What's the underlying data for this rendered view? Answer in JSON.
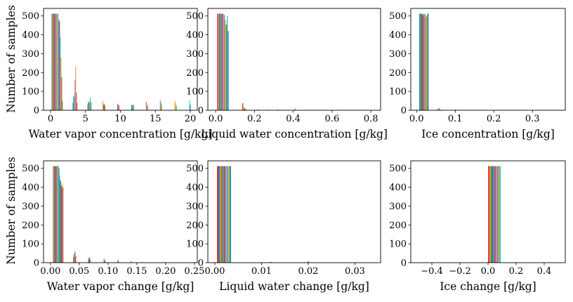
{
  "figure": {
    "ylabel_left": "Number of samples"
  },
  "colors": [
    "#1f77b4",
    "#ff7f0e",
    "#2ca02c",
    "#d62728",
    "#9467bd",
    "#8c564b",
    "#e377c2",
    "#7f7f7f",
    "#bcbd22",
    "#17becf"
  ],
  "chart_data": [
    {
      "type": "bar",
      "title": "",
      "xlabel": "Water vapor concentration [g/kg]",
      "ylabel": "Number of samples",
      "xlim": [
        -1.0,
        21.0
      ],
      "ylim": [
        0,
        540
      ],
      "xticks": [
        0,
        5,
        10,
        15,
        20
      ],
      "xtick_labels": [
        "0",
        "5",
        "10",
        "15",
        "20"
      ],
      "yticks": [
        0,
        100,
        200,
        300,
        400,
        500
      ],
      "ytick_labels": [
        "0",
        "100",
        "200",
        "300",
        "400",
        "500"
      ],
      "bar_width": 0.09,
      "bars": [
        [
          0.2,
          512,
          0
        ],
        [
          0.3,
          512,
          1
        ],
        [
          0.4,
          512,
          2
        ],
        [
          0.5,
          512,
          3
        ],
        [
          0.6,
          512,
          4
        ],
        [
          0.7,
          512,
          5
        ],
        [
          0.8,
          512,
          6
        ],
        [
          0.9,
          512,
          7
        ],
        [
          1.0,
          512,
          8
        ],
        [
          1.1,
          512,
          9
        ],
        [
          1.2,
          480,
          0
        ],
        [
          1.3,
          470,
          3
        ],
        [
          1.4,
          390,
          9
        ],
        [
          1.5,
          280,
          1
        ],
        [
          1.6,
          175,
          3
        ],
        [
          1.7,
          50,
          2
        ],
        [
          3.2,
          40,
          2
        ],
        [
          3.3,
          70,
          0
        ],
        [
          3.4,
          80,
          9
        ],
        [
          3.5,
          160,
          4
        ],
        [
          3.6,
          232,
          1
        ],
        [
          3.7,
          95,
          3
        ],
        [
          3.8,
          40,
          5
        ],
        [
          5.3,
          30,
          1
        ],
        [
          5.4,
          45,
          2
        ],
        [
          5.5,
          40,
          0
        ],
        [
          5.6,
          50,
          9
        ],
        [
          5.7,
          70,
          9
        ],
        [
          5.8,
          40,
          3
        ],
        [
          7.5,
          50,
          1
        ],
        [
          7.6,
          30,
          3
        ],
        [
          7.7,
          35,
          2
        ],
        [
          7.8,
          25,
          5
        ],
        [
          9.6,
          35,
          0
        ],
        [
          9.7,
          30,
          1
        ],
        [
          9.8,
          25,
          3
        ],
        [
          11.6,
          30,
          0
        ],
        [
          11.7,
          25,
          2
        ],
        [
          11.8,
          30,
          9
        ],
        [
          11.9,
          28,
          4
        ],
        [
          13.7,
          45,
          3
        ],
        [
          13.8,
          30,
          1
        ],
        [
          13.9,
          25,
          9
        ],
        [
          15.7,
          55,
          4
        ],
        [
          15.8,
          40,
          2
        ],
        [
          15.9,
          28,
          1
        ],
        [
          17.8,
          50,
          1
        ],
        [
          17.9,
          35,
          8
        ],
        [
          18.0,
          25,
          2
        ],
        [
          19.9,
          55,
          9
        ],
        [
          20.0,
          30,
          0
        ]
      ]
    },
    {
      "type": "bar",
      "title": "",
      "xlabel": "Liquid water concentration [g/kg]",
      "ylabel": "",
      "xlim": [
        -0.04,
        0.85
      ],
      "ylim": [
        0,
        540
      ],
      "xticks": [
        0.0,
        0.2,
        0.4,
        0.6,
        0.8
      ],
      "xtick_labels": [
        "0.0",
        "0.2",
        "0.4",
        "0.6",
        "0.8"
      ],
      "yticks": [
        0,
        100,
        200,
        300,
        400,
        500
      ],
      "ytick_labels": [
        "0",
        "100",
        "200",
        "300",
        "400",
        "500"
      ],
      "bar_width": 0.0045,
      "bars": [
        [
          0.01,
          512,
          3
        ],
        [
          0.015,
          512,
          1
        ],
        [
          0.02,
          512,
          0
        ],
        [
          0.025,
          512,
          2
        ],
        [
          0.03,
          512,
          4
        ],
        [
          0.035,
          512,
          5
        ],
        [
          0.04,
          512,
          6
        ],
        [
          0.045,
          505,
          7
        ],
        [
          0.05,
          480,
          8
        ],
        [
          0.055,
          455,
          5
        ],
        [
          0.06,
          500,
          9
        ],
        [
          0.065,
          420,
          0
        ],
        [
          0.14,
          38,
          3
        ],
        [
          0.145,
          15,
          1
        ],
        [
          0.15,
          10,
          2
        ],
        [
          0.155,
          8,
          9
        ],
        [
          0.22,
          5,
          0
        ],
        [
          0.27,
          3,
          3
        ],
        [
          0.32,
          6,
          9
        ],
        [
          0.41,
          8,
          0
        ],
        [
          0.64,
          3,
          2
        ]
      ]
    },
    {
      "type": "bar",
      "title": "",
      "xlabel": "Ice concentration [g/kg]",
      "ylabel": "",
      "xlim": [
        -0.015,
        0.385
      ],
      "ylim": [
        0,
        540
      ],
      "xticks": [
        0.0,
        0.1,
        0.2,
        0.3
      ],
      "xtick_labels": [
        "0.0",
        "0.1",
        "0.2",
        "0.3"
      ],
      "yticks": [
        0,
        100,
        200,
        300,
        400,
        500
      ],
      "ytick_labels": [
        "0",
        "100",
        "200",
        "300",
        "400",
        "500"
      ],
      "bar_width": 0.0022,
      "bars": [
        [
          0.008,
          512,
          0
        ],
        [
          0.01,
          512,
          9
        ],
        [
          0.012,
          512,
          2
        ],
        [
          0.014,
          510,
          3
        ],
        [
          0.016,
          512,
          4
        ],
        [
          0.018,
          505,
          5
        ],
        [
          0.02,
          512,
          6
        ],
        [
          0.022,
          508,
          7
        ],
        [
          0.024,
          495,
          8
        ],
        [
          0.026,
          500,
          1
        ],
        [
          0.028,
          512,
          9
        ],
        [
          0.03,
          512,
          0
        ],
        [
          0.055,
          8,
          1
        ],
        [
          0.058,
          12,
          3
        ],
        [
          0.061,
          5,
          2
        ],
        [
          0.1,
          4,
          0
        ],
        [
          0.103,
          2,
          9
        ]
      ]
    },
    {
      "type": "bar",
      "title": "",
      "xlabel": "Water vapor change [g/kg]",
      "ylabel": "Number of samples",
      "xlim": [
        -0.012,
        0.255
      ],
      "ylim": [
        0,
        540
      ],
      "xticks": [
        0.0,
        0.05,
        0.1,
        0.15,
        0.2,
        0.25
      ],
      "xtick_labels": [
        "0.00",
        "0.05",
        "0.10",
        "0.15",
        "0.20",
        "0.25"
      ],
      "yticks": [
        0,
        100,
        200,
        300,
        400,
        500
      ],
      "ytick_labels": [
        "0",
        "100",
        "200",
        "300",
        "400",
        "500"
      ],
      "bar_width": 0.0011,
      "bars": [
        [
          0.005,
          512,
          0
        ],
        [
          0.006,
          512,
          1
        ],
        [
          0.007,
          512,
          2
        ],
        [
          0.008,
          512,
          3
        ],
        [
          0.009,
          512,
          4
        ],
        [
          0.01,
          512,
          5
        ],
        [
          0.011,
          512,
          6
        ],
        [
          0.012,
          512,
          7
        ],
        [
          0.013,
          512,
          8
        ],
        [
          0.014,
          512,
          9
        ],
        [
          0.015,
          500,
          0
        ],
        [
          0.016,
          460,
          9
        ],
        [
          0.017,
          440,
          2
        ],
        [
          0.018,
          430,
          0
        ],
        [
          0.019,
          410,
          3
        ],
        [
          0.02,
          395,
          3
        ],
        [
          0.021,
          420,
          1
        ],
        [
          0.022,
          400,
          4
        ],
        [
          0.04,
          30,
          0
        ],
        [
          0.041,
          45,
          2
        ],
        [
          0.042,
          55,
          1
        ],
        [
          0.043,
          60,
          4
        ],
        [
          0.044,
          35,
          3
        ],
        [
          0.066,
          20,
          0
        ],
        [
          0.067,
          25,
          2
        ],
        [
          0.068,
          30,
          5
        ],
        [
          0.069,
          15,
          3
        ],
        [
          0.093,
          20,
          3
        ],
        [
          0.094,
          15,
          1
        ],
        [
          0.095,
          10,
          0
        ],
        [
          0.117,
          15,
          0
        ],
        [
          0.118,
          8,
          2
        ],
        [
          0.14,
          8,
          9
        ],
        [
          0.141,
          5,
          3
        ],
        [
          0.16,
          4,
          0
        ],
        [
          0.2,
          3,
          2
        ],
        [
          0.24,
          2,
          1
        ]
      ]
    },
    {
      "type": "bar",
      "title": "",
      "xlabel": "Liquid water change [g/kg]",
      "ylabel": "",
      "xlim": [
        -0.0015,
        0.0355
      ],
      "ylim": [
        0,
        540
      ],
      "xticks": [
        0.0,
        0.01,
        0.02,
        0.03
      ],
      "xtick_labels": [
        "0.00",
        "0.01",
        "0.02",
        "0.03"
      ],
      "yticks": [
        0,
        100,
        200,
        300,
        400,
        500
      ],
      "ytick_labels": [
        "0",
        "100",
        "200",
        "300",
        "400",
        "500"
      ],
      "bar_width": 0.00028,
      "bars": [
        [
          0.0006,
          512,
          3
        ],
        [
          0.0009,
          512,
          0
        ],
        [
          0.0012,
          512,
          1
        ],
        [
          0.0015,
          512,
          2
        ],
        [
          0.0018,
          512,
          4
        ],
        [
          0.0021,
          512,
          5
        ],
        [
          0.0024,
          512,
          6
        ],
        [
          0.0027,
          512,
          9
        ],
        [
          0.003,
          512,
          8
        ],
        [
          0.0033,
          512,
          0
        ],
        [
          0.012,
          4,
          0
        ],
        [
          0.02,
          6,
          3
        ]
      ]
    },
    {
      "type": "bar",
      "title": "",
      "xlabel": "Ice change [g/kg]",
      "ylabel": "",
      "xlim": [
        -0.55,
        0.55
      ],
      "ylim": [
        0,
        540
      ],
      "xticks": [
        -0.4,
        -0.2,
        0.0,
        0.2,
        0.4
      ],
      "xtick_labels": [
        "−0.4",
        "−0.2",
        "0.0",
        "0.2",
        "0.4"
      ],
      "yticks": [
        0,
        100,
        200,
        300,
        400,
        500
      ],
      "ytick_labels": [
        "0",
        "100",
        "200",
        "300",
        "400",
        "500"
      ],
      "bar_width": 0.0085,
      "bars": [
        [
          0.005,
          512,
          3
        ],
        [
          0.014,
          512,
          1
        ],
        [
          0.023,
          512,
          2
        ],
        [
          0.032,
          512,
          0
        ],
        [
          0.041,
          512,
          4
        ],
        [
          0.05,
          512,
          5
        ],
        [
          0.059,
          512,
          6
        ],
        [
          0.068,
          512,
          7
        ],
        [
          0.077,
          512,
          8
        ],
        [
          0.086,
          512,
          9
        ]
      ]
    }
  ]
}
